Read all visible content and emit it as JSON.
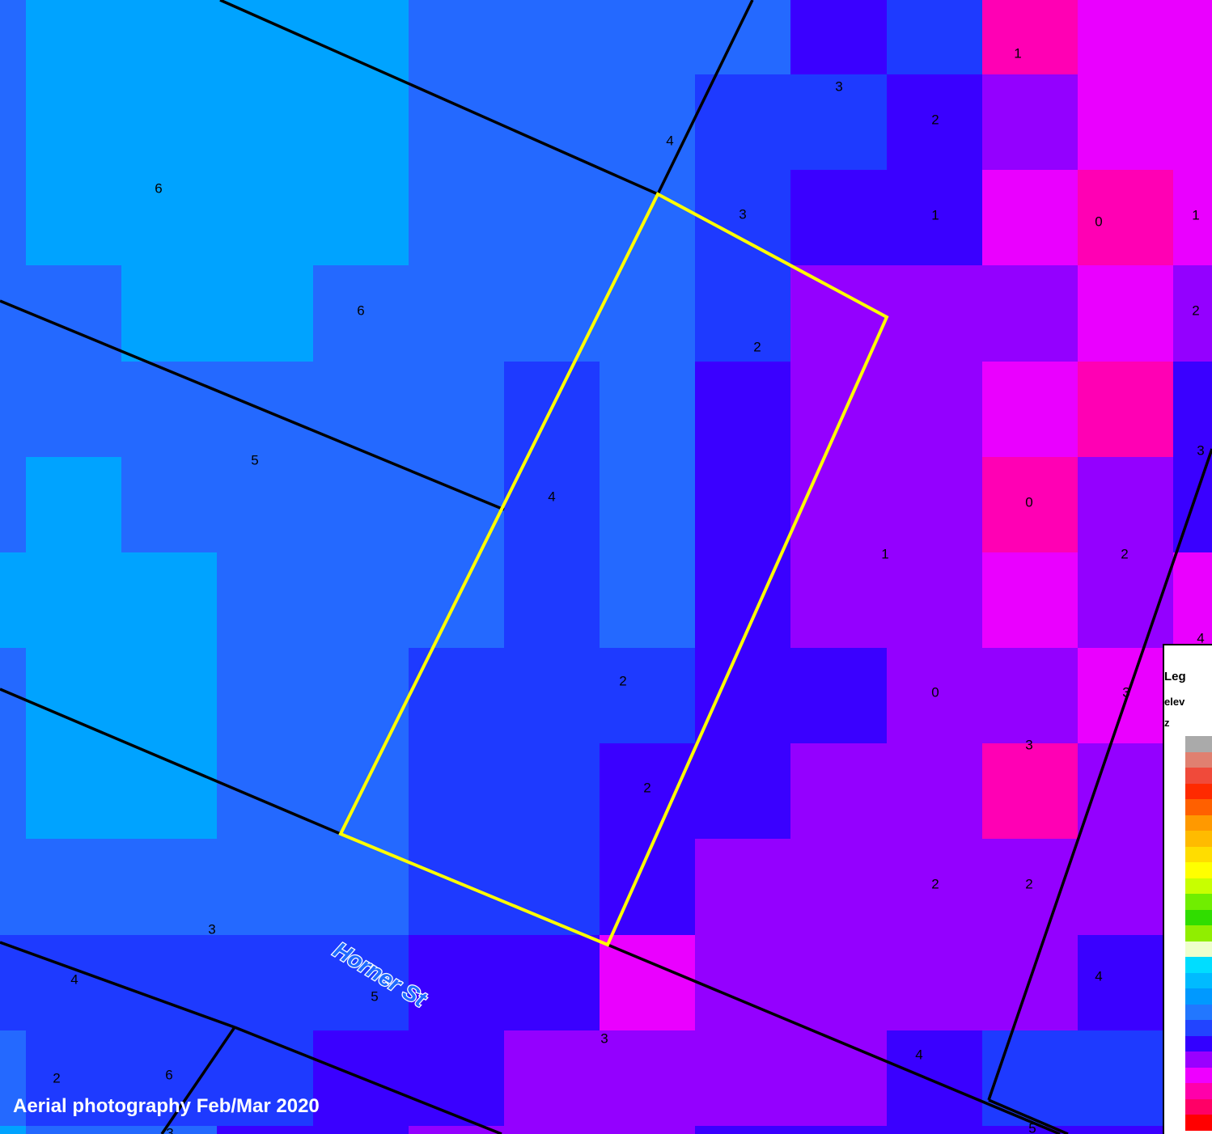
{
  "map": {
    "credit": "Aerial photography Feb/Mar 2020",
    "street_label": "Horner St",
    "elevation_colors": {
      "0": "#ff00b4",
      "1": "#ea00ff",
      "2": "#9400ff",
      "3": "#3a00ff",
      "4": "#1e3aff",
      "5": "#2469ff",
      "6": "#00a3ff"
    },
    "outline_colors": {
      "subject_lot": "#ffff00",
      "property_lines": "#000000",
      "street_label_fill": "#1e6bff"
    },
    "cell_labels": [
      "1",
      "3",
      "2",
      "4",
      "6",
      "3",
      "1",
      "0",
      "1",
      "6",
      "2",
      "2",
      "5",
      "4",
      "3",
      "0",
      "2",
      "1",
      "2",
      "4",
      "3",
      "0",
      "3",
      "2",
      "2",
      "2",
      "3",
      "4",
      "4",
      "5",
      "3",
      "4",
      "2",
      "6",
      "5",
      "3",
      "4"
    ]
  },
  "legend": {
    "title": "Leg",
    "layer": "elev",
    "field": "z",
    "colors": [
      "#aaaaaa",
      "#e08070",
      "#f04a3a",
      "#ff2a00",
      "#ff6000",
      "#ff9900",
      "#ffbb00",
      "#ffdd00",
      "#ffff00",
      "#c8ff00",
      "#70ee00",
      "#30dd00",
      "#90ee00",
      "#eeffcc",
      "#00ddff",
      "#00bbff",
      "#0099ff",
      "#2277ff",
      "#2244ff",
      "#3300ff",
      "#9900ff",
      "#ee00ff",
      "#ff00aa",
      "#ff0066",
      "#ff0000"
    ]
  }
}
